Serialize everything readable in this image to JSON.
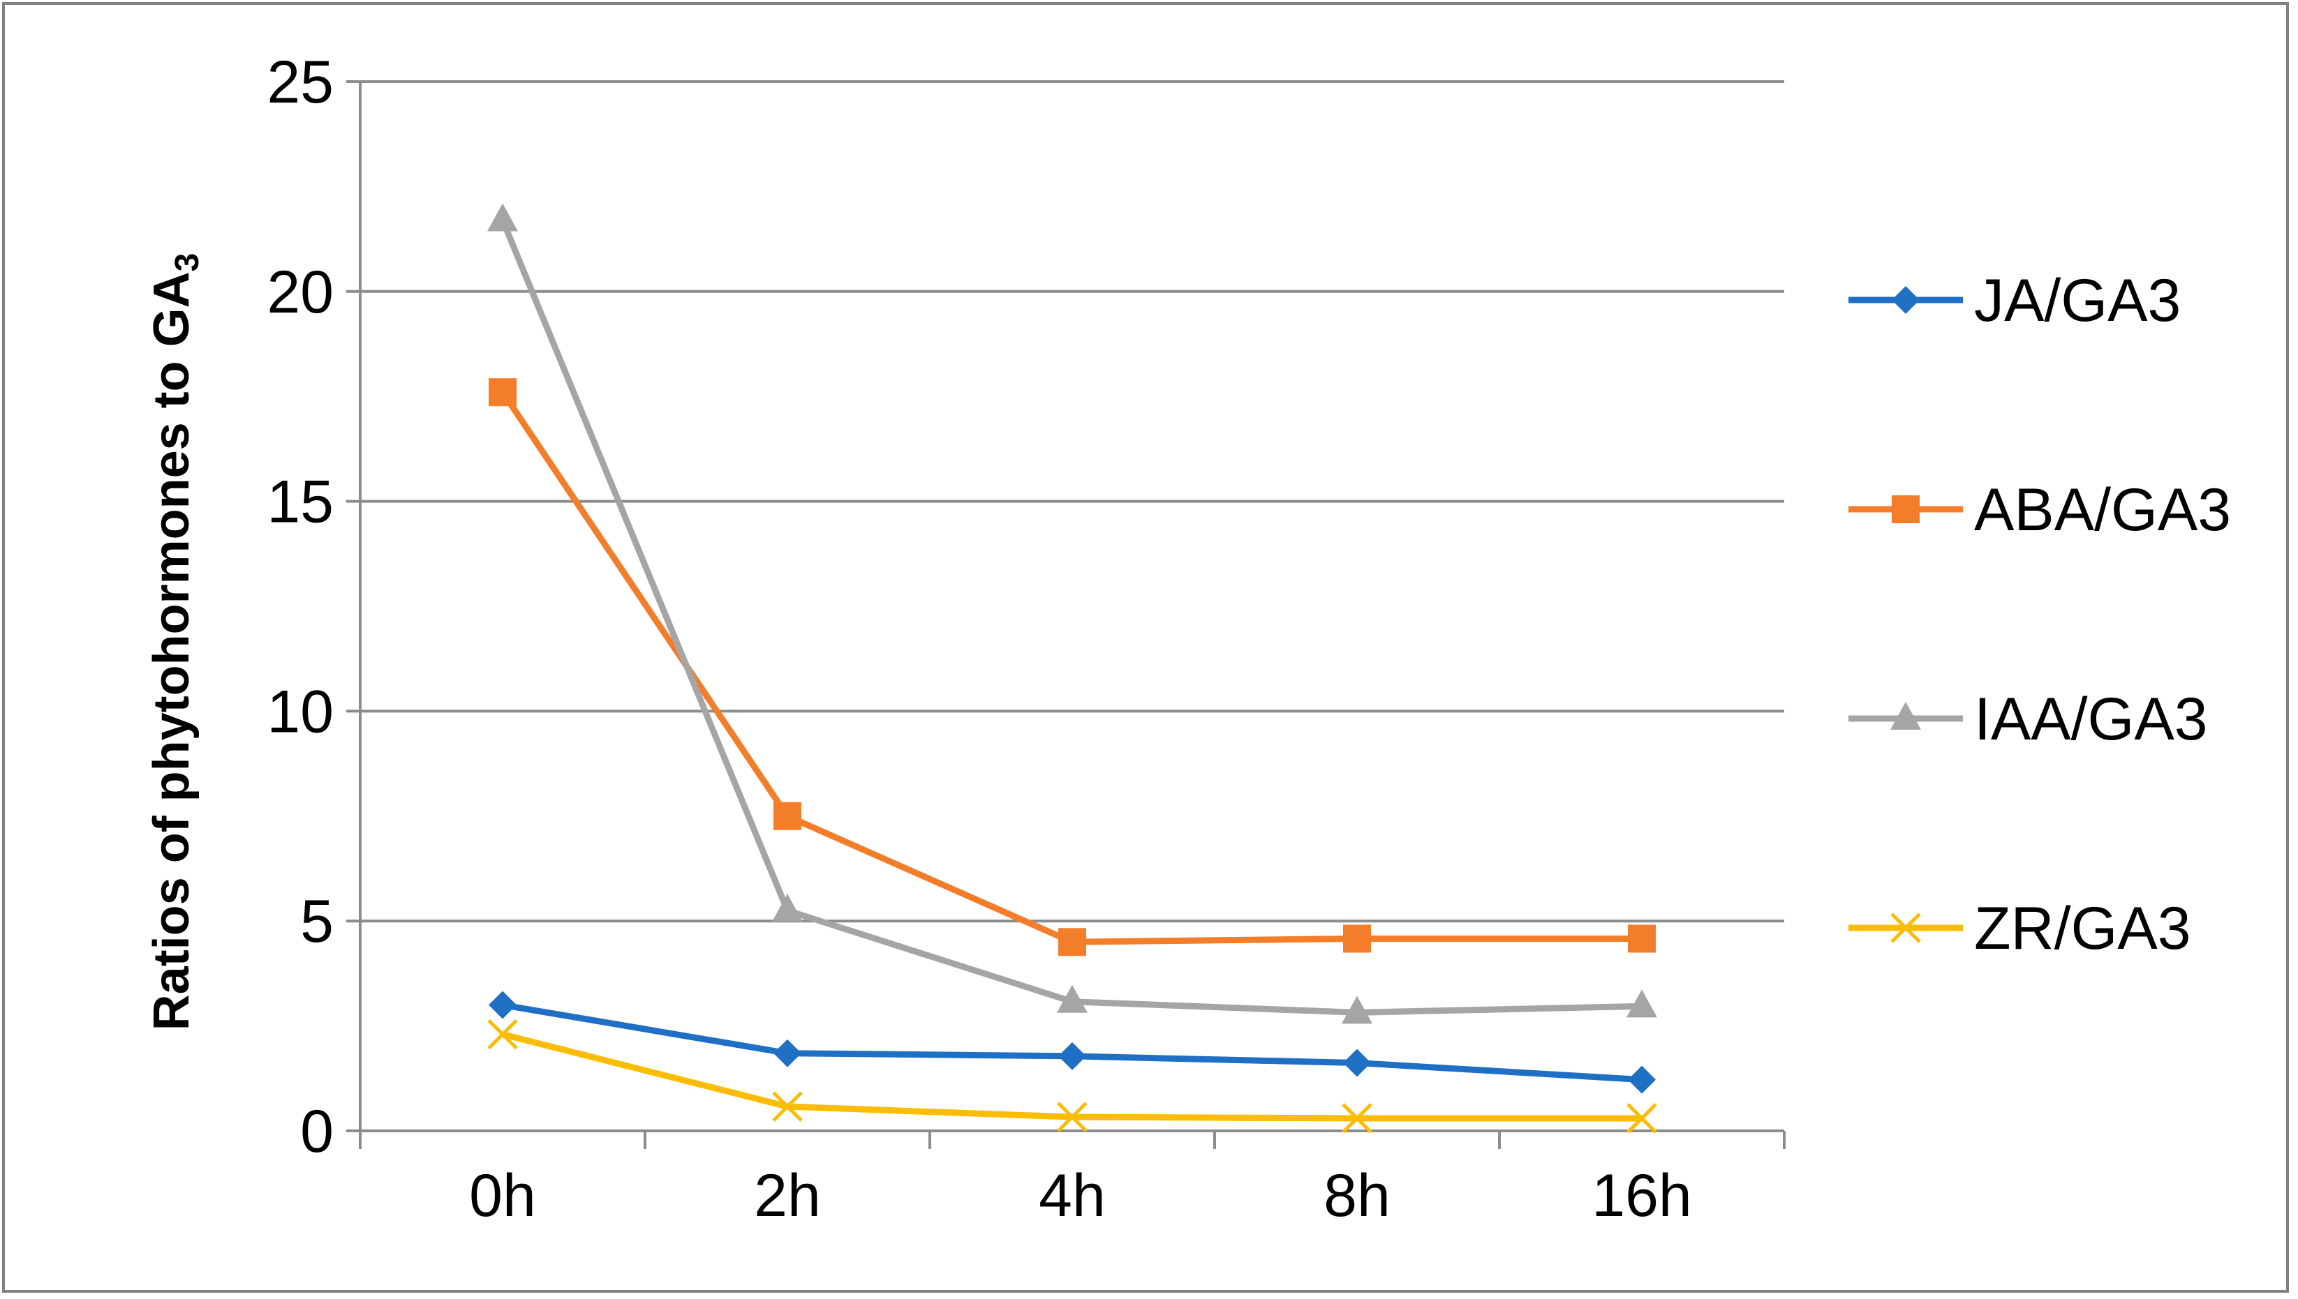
{
  "chart_data": {
    "type": "line",
    "title": "",
    "xlabel": "",
    "ylabel": "Ratios of phytohormones to GA",
    "ylabel_subscript": "3",
    "ylim": [
      0,
      25
    ],
    "yticks": [
      0,
      5,
      10,
      15,
      20,
      25
    ],
    "grid": true,
    "legend_position": "right",
    "categories": [
      "0h",
      "2h",
      "4h",
      "8h",
      "16h"
    ],
    "series": [
      {
        "name": "JA/GA3",
        "color": "#1f6fc5",
        "marker": "diamond",
        "values": [
          3.0,
          1.85,
          1.78,
          1.62,
          1.22
        ]
      },
      {
        "name": "ABA/GA3",
        "color": "#f47d2a",
        "marker": "square",
        "values": [
          17.6,
          7.5,
          4.5,
          4.58,
          4.58
        ]
      },
      {
        "name": "IAA/GA3",
        "color": "#a5a5a5",
        "marker": "triangle",
        "values": [
          21.7,
          5.25,
          3.08,
          2.82,
          2.97
        ]
      },
      {
        "name": "ZR/GA3",
        "color": "#fbbc05",
        "marker": "x",
        "values": [
          2.3,
          0.58,
          0.33,
          0.3,
          0.3
        ]
      }
    ]
  }
}
